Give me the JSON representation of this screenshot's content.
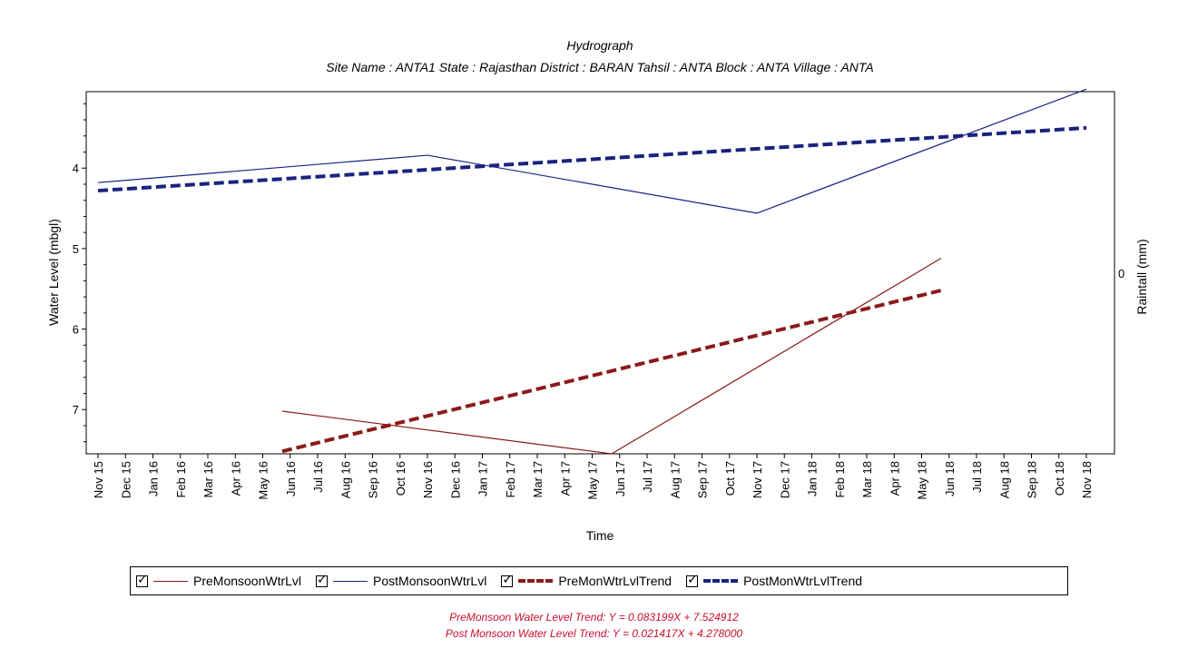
{
  "chart_data": {
    "type": "line",
    "title": "Hydrograph",
    "subtitle": "Site Name : ANTA1  State : Rajasthan District : BARAN  Tahsil : ANTA  Block : ANTA Village : ANTA",
    "xlabel": "Time",
    "ylabel": "Water Level (mbgl)",
    "y2label": "Raintall (mm)",
    "y2_ticks": [
      "0"
    ],
    "y_inverted": true,
    "ylim": [
      7.55,
      3.05
    ],
    "y_ticks": [
      4,
      5,
      6,
      7
    ],
    "x_ticks": [
      "Nov 15",
      "Dec 15",
      "Jan 16",
      "Feb 16",
      "Mar 16",
      "Apr 16",
      "May 16",
      "Jun 16",
      "Jul 16",
      "Aug 16",
      "Sep 16",
      "Oct 16",
      "Nov 16",
      "Dec 16",
      "Jan 17",
      "Feb 17",
      "Mar 17",
      "Apr 17",
      "May 17",
      "Jun 17",
      "Jul 17",
      "Aug 17",
      "Sep 17",
      "Oct 17",
      "Nov 17",
      "Dec 17",
      "Jan 18",
      "Feb 18",
      "Mar 18",
      "Apr 18",
      "May 18",
      "Jun 18",
      "Jul 18",
      "Aug 18",
      "Sep 18",
      "Oct 18",
      "Nov 18"
    ],
    "series": [
      {
        "name": "PreMonsoonWtrLvl",
        "color": "#8b1a1a",
        "style": "solid",
        "points": [
          [
            "2016-05-23",
            7.02
          ],
          [
            "2017-05-23",
            7.55
          ],
          [
            "2018-05-23",
            5.12
          ]
        ]
      },
      {
        "name": "PostMonsoonWtrLvl",
        "color": "#1a237e",
        "style": "solid",
        "points": [
          [
            "2015-11-01",
            4.18
          ],
          [
            "2016-11-01",
            3.84
          ],
          [
            "2017-11-01",
            4.56
          ],
          [
            "2018-11-01",
            3.02
          ]
        ]
      },
      {
        "name": "PreMonWtrLvlTrend",
        "color": "#8b1a1a",
        "style": "dashed",
        "points": [
          [
            "2016-05-23",
            7.52
          ],
          [
            "2018-05-23",
            5.52
          ]
        ]
      },
      {
        "name": "PostMonWtrLvlTrend",
        "color": "#1a237e",
        "style": "dashed",
        "points": [
          [
            "2015-11-01",
            4.28
          ],
          [
            "2018-11-01",
            3.5
          ]
        ]
      }
    ],
    "grid": false,
    "legend_position": "bottom"
  },
  "legend": {
    "items": [
      {
        "label": "PreMonsoonWtrLvl",
        "color": "#8b1a1a",
        "style": "solid"
      },
      {
        "label": "PostMonsoonWtrLvl",
        "color": "#1a237e",
        "style": "solid"
      },
      {
        "label": "PreMonWtrLvlTrend",
        "color": "#8b1a1a",
        "style": "dashed"
      },
      {
        "label": "PostMonWtrLvlTrend",
        "color": "#1a237e",
        "style": "dashed"
      }
    ]
  },
  "equations": {
    "pre": "PreMonsoon Water Level Trend: Y = 0.083199X + 7.524912",
    "post": "Post Monsoon Water Level Trend: Y = 0.021417X + 4.278000"
  }
}
